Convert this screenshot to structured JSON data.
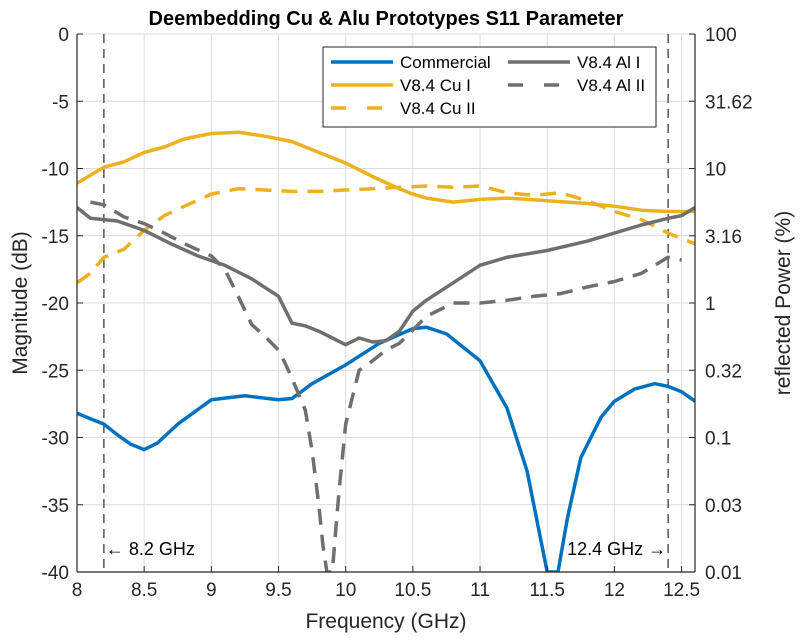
{
  "chart_data": {
    "type": "line",
    "title": "Deembedding Cu & Alu Prototypes S11 Parameter",
    "xlabel": "Frequency (GHz)",
    "ylabel": "Magnitude (dB)",
    "ylabel_right": "reflected Power (%)",
    "xlim": [
      8,
      12.6
    ],
    "ylim": [
      -40,
      0
    ],
    "grid": true,
    "legend_position": "top-right",
    "x_ticks": [
      8,
      8.5,
      9,
      9.5,
      10,
      10.5,
      11,
      11.5,
      12,
      12.5
    ],
    "x_tick_labels": [
      "8",
      "8.5",
      "9",
      "9.5",
      "10",
      "10.5",
      "11",
      "11.5",
      "12",
      "12.5"
    ],
    "y_ticks": [
      0,
      -5,
      -10,
      -15,
      -20,
      -25,
      -30,
      -35,
      -40
    ],
    "y_tick_labels": [
      "0",
      "-5",
      "-10",
      "-15",
      "-20",
      "-25",
      "-30",
      "-35",
      "-40"
    ],
    "y_right_ticks_db": [
      0,
      -5,
      -10,
      -15,
      -20,
      -25,
      -30,
      -35,
      -40
    ],
    "y_right_tick_labels": [
      "100",
      "31.62",
      "10",
      "3.16",
      "1",
      "0.32",
      "0.1",
      "0.03",
      "0.01"
    ],
    "annotations": [
      {
        "text": "← 8.2 GHz",
        "x": 8.2,
        "y": -38.2,
        "align": "left"
      },
      {
        "text": "12.4 GHz →",
        "x": 12.4,
        "y": -38.2,
        "align": "right"
      }
    ],
    "vlines": [
      8.2,
      12.4
    ],
    "series": [
      {
        "name": "Commercial",
        "color": "#0072BD",
        "style": "solid",
        "x": [
          8.0,
          8.1,
          8.2,
          8.3,
          8.4,
          8.5,
          8.6,
          8.75,
          9.0,
          9.25,
          9.5,
          9.6,
          9.75,
          10.0,
          10.25,
          10.5,
          10.6,
          10.75,
          11.0,
          11.2,
          11.35,
          11.45,
          11.5,
          11.58,
          11.65,
          11.75,
          11.9,
          12.0,
          12.15,
          12.3,
          12.4,
          12.5,
          12.6
        ],
        "y": [
          -28.2,
          -28.6,
          -29.0,
          -29.8,
          -30.5,
          -30.9,
          -30.4,
          -29.0,
          -27.2,
          -26.9,
          -27.2,
          -27.1,
          -26.0,
          -24.6,
          -23.0,
          -21.9,
          -21.8,
          -22.3,
          -24.3,
          -27.8,
          -32.5,
          -37.5,
          -40.0,
          -40.0,
          -36.0,
          -31.5,
          -28.5,
          -27.3,
          -26.4,
          -26.0,
          -26.2,
          -26.6,
          -27.3
        ]
      },
      {
        "name": "V8.4 Cu I",
        "color": "#EDB120",
        "style": "solid",
        "x": [
          8.0,
          8.1,
          8.2,
          8.35,
          8.5,
          8.65,
          8.8,
          9.0,
          9.2,
          9.4,
          9.6,
          9.8,
          10.0,
          10.2,
          10.4,
          10.5,
          10.6,
          10.8,
          11.0,
          11.2,
          11.5,
          11.8,
          12.0,
          12.2,
          12.4,
          12.6
        ],
        "y": [
          -11.1,
          -10.5,
          -9.9,
          -9.5,
          -8.8,
          -8.4,
          -7.8,
          -7.4,
          -7.3,
          -7.6,
          -8.0,
          -8.8,
          -9.6,
          -10.6,
          -11.5,
          -11.9,
          -12.2,
          -12.5,
          -12.3,
          -12.2,
          -12.4,
          -12.6,
          -12.8,
          -13.1,
          -13.2,
          -13.2
        ]
      },
      {
        "name": "V8.4 Cu II",
        "color": "#EDB120",
        "style": "dashed",
        "x": [
          8.0,
          8.1,
          8.2,
          8.35,
          8.5,
          8.65,
          8.8,
          9.0,
          9.2,
          9.4,
          9.6,
          9.8,
          10.0,
          10.2,
          10.4,
          10.6,
          10.8,
          11.0,
          11.2,
          11.4,
          11.6,
          11.8,
          12.0,
          12.2,
          12.4,
          12.5,
          12.6
        ],
        "y": [
          -18.5,
          -17.8,
          -16.6,
          -16.0,
          -14.6,
          -13.5,
          -12.8,
          -11.9,
          -11.5,
          -11.6,
          -11.7,
          -11.7,
          -11.6,
          -11.5,
          -11.4,
          -11.3,
          -11.4,
          -11.3,
          -11.8,
          -12.0,
          -11.8,
          -12.4,
          -13.2,
          -13.8,
          -14.8,
          -15.2,
          -15.6
        ]
      },
      {
        "name": "V8.4 Al I",
        "color": "#6F6F6F",
        "style": "solid",
        "x": [
          8.0,
          8.1,
          8.2,
          8.3,
          8.5,
          8.7,
          8.9,
          9.1,
          9.3,
          9.5,
          9.6,
          9.7,
          9.8,
          9.9,
          10.0,
          10.1,
          10.2,
          10.3,
          10.4,
          10.5,
          10.6,
          10.8,
          11.0,
          11.2,
          11.5,
          11.8,
          12.0,
          12.2,
          12.4,
          12.5,
          12.6
        ],
        "y": [
          -12.9,
          -13.7,
          -13.8,
          -13.9,
          -14.6,
          -15.6,
          -16.5,
          -17.2,
          -18.2,
          -19.5,
          -21.5,
          -21.7,
          -22.1,
          -22.6,
          -23.1,
          -22.6,
          -22.9,
          -22.8,
          -22.1,
          -20.6,
          -19.8,
          -18.5,
          -17.2,
          -16.6,
          -16.1,
          -15.4,
          -14.8,
          -14.2,
          -13.7,
          -13.5,
          -12.9
        ]
      },
      {
        "name": "V8.4 Al II",
        "color": "#6F6F6F",
        "style": "dashed",
        "x": [
          8.1,
          8.2,
          8.35,
          8.5,
          8.65,
          8.8,
          9.0,
          9.1,
          9.2,
          9.3,
          9.4,
          9.5,
          9.55,
          9.6,
          9.7,
          9.75,
          9.8,
          9.83,
          9.86,
          9.9,
          9.95,
          10.0,
          10.1,
          10.2,
          10.3,
          10.4,
          10.5,
          10.6,
          10.8,
          11.0,
          11.2,
          11.4,
          11.6,
          11.8,
          12.0,
          12.2,
          12.4,
          12.5
        ],
        "y": [
          -12.5,
          -12.7,
          -13.6,
          -14.1,
          -14.8,
          -15.6,
          -16.5,
          -17.5,
          -19.5,
          -21.6,
          -22.5,
          -23.5,
          -24.5,
          -25.6,
          -28.0,
          -31.0,
          -35.0,
          -38.0,
          -40.0,
          -40.0,
          -34.0,
          -29.0,
          -25.0,
          -24.3,
          -23.5,
          -23.0,
          -22.0,
          -21.0,
          -20.0,
          -20.0,
          -19.8,
          -19.5,
          -19.3,
          -18.8,
          -18.4,
          -17.8,
          -16.6,
          -16.8
        ]
      }
    ],
    "legend": {
      "columns": [
        [
          "Commercial",
          "V8.4 Cu I",
          "V8.4 Cu II"
        ],
        [
          "V8.4 Al I",
          "V8.4 Al II"
        ]
      ]
    }
  }
}
